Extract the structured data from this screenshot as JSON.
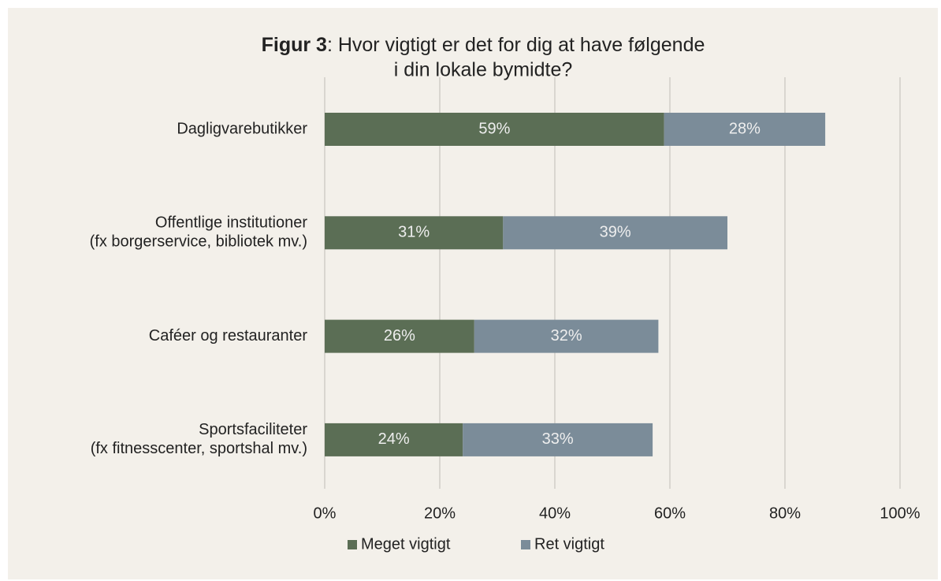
{
  "chart_data": {
    "type": "stacked-barh",
    "title": [
      "Figur 3",
      ": Hvor vigtigt er det for dig at have følgende",
      "i din lokale bymidte?"
    ],
    "categories": [
      [
        "Dagligvarebutikker"
      ],
      [
        "Offentlige institutioner",
        "(fx borgerservice, bibliotek mv.)"
      ],
      [
        "Caféer og restauranter"
      ],
      [
        "Sportsfaciliteter",
        "(fx fitnesscenter, sportshal mv.)"
      ]
    ],
    "series": [
      {
        "name": "Meget vigtigt",
        "color": "#5b6e55",
        "values": [
          59,
          31,
          26,
          24
        ],
        "value_labels": [
          "59%",
          "31%",
          "26%",
          "24%"
        ]
      },
      {
        "name": "Ret vigtigt",
        "color": "#7b8c99",
        "values": [
          28,
          39,
          32,
          33
        ],
        "value_labels": [
          "28%",
          "39%",
          "32%",
          "33%"
        ]
      }
    ],
    "xlim": [
      0,
      100
    ],
    "xticks": [
      {
        "value": 0,
        "label": "0%"
      },
      {
        "value": 20,
        "label": "20%"
      },
      {
        "value": 40,
        "label": "40%"
      },
      {
        "value": 60,
        "label": "60%"
      },
      {
        "value": 80,
        "label": "80%"
      },
      {
        "value": 100,
        "label": "100%"
      }
    ],
    "grid": true,
    "legend": "bottom"
  }
}
